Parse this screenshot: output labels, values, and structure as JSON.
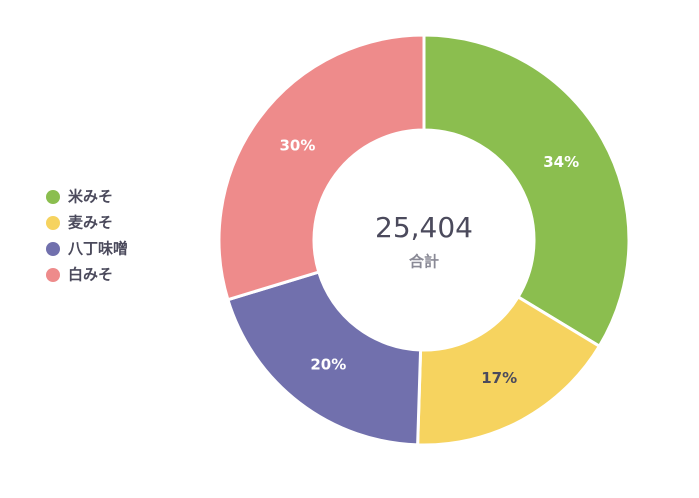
{
  "chart_data": {
    "type": "donut",
    "categories": [
      "米みそ",
      "麦みそ",
      "八丁味噌",
      "白みそ"
    ],
    "values": [
      34,
      17,
      20,
      30
    ],
    "value_labels": [
      "34%",
      "17%",
      "20%",
      "30%"
    ],
    "colors": [
      "#8bbe4f",
      "#f6d35f",
      "#7170ad",
      "#ee8b8b"
    ],
    "value_label_colors": [
      "#ffffff",
      "#4b4a5c",
      "#ffffff",
      "#ffffff"
    ],
    "center_value": "25,404",
    "center_label": "合計",
    "legend": "left"
  }
}
